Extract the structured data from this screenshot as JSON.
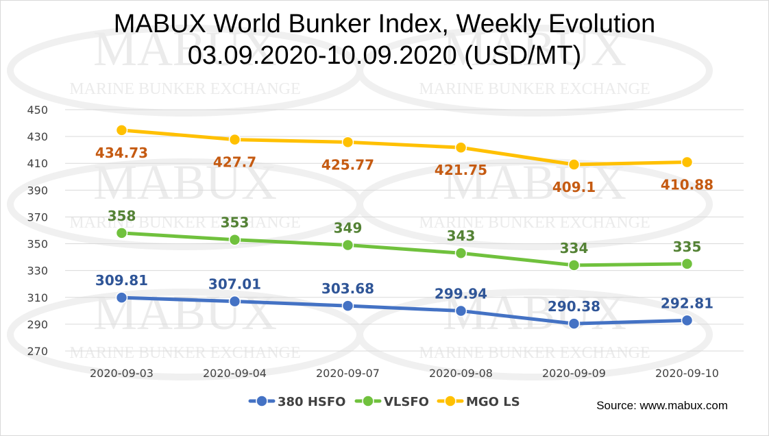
{
  "title": [
    "MABUX World Bunker Index, Weekly Evolution",
    "03.09.2020-10.09.2020 (USD/MT)"
  ],
  "source": "Source: www.mabux.com",
  "watermark": {
    "main": "MABUX",
    "sub": "MARINE BUNKER EXCHANGE"
  },
  "chart_data": {
    "type": "line",
    "title": "MABUX World Bunker Index, Weekly Evolution 03.09.2020-10.09.2020 (USD/MT)",
    "categories": [
      "2020-09-03",
      "2020-09-04",
      "2020-09-07",
      "2020-09-08",
      "2020-09-09",
      "2020-09-10"
    ],
    "ylim": [
      270,
      450
    ],
    "yticks": [
      270,
      290,
      310,
      330,
      350,
      370,
      390,
      410,
      430,
      450
    ],
    "grid": true,
    "legend": "bottom",
    "series": [
      {
        "name": "380 HSFO",
        "color": "#4472c4",
        "label_color": "#2f5597",
        "label_pos": "above",
        "values": [
          309.81,
          307.01,
          303.68,
          299.94,
          290.38,
          292.81
        ]
      },
      {
        "name": "VLSFO",
        "color": "#70c13d",
        "label_color": "#548235",
        "label_pos": "above",
        "values": [
          358,
          353,
          349,
          343,
          334,
          335
        ]
      },
      {
        "name": "MGO LS",
        "color": "#ffc000",
        "label_color": "#c55a11",
        "label_pos": "below",
        "values": [
          434.73,
          427.7,
          425.77,
          421.75,
          409.1,
          410.88
        ]
      }
    ]
  }
}
